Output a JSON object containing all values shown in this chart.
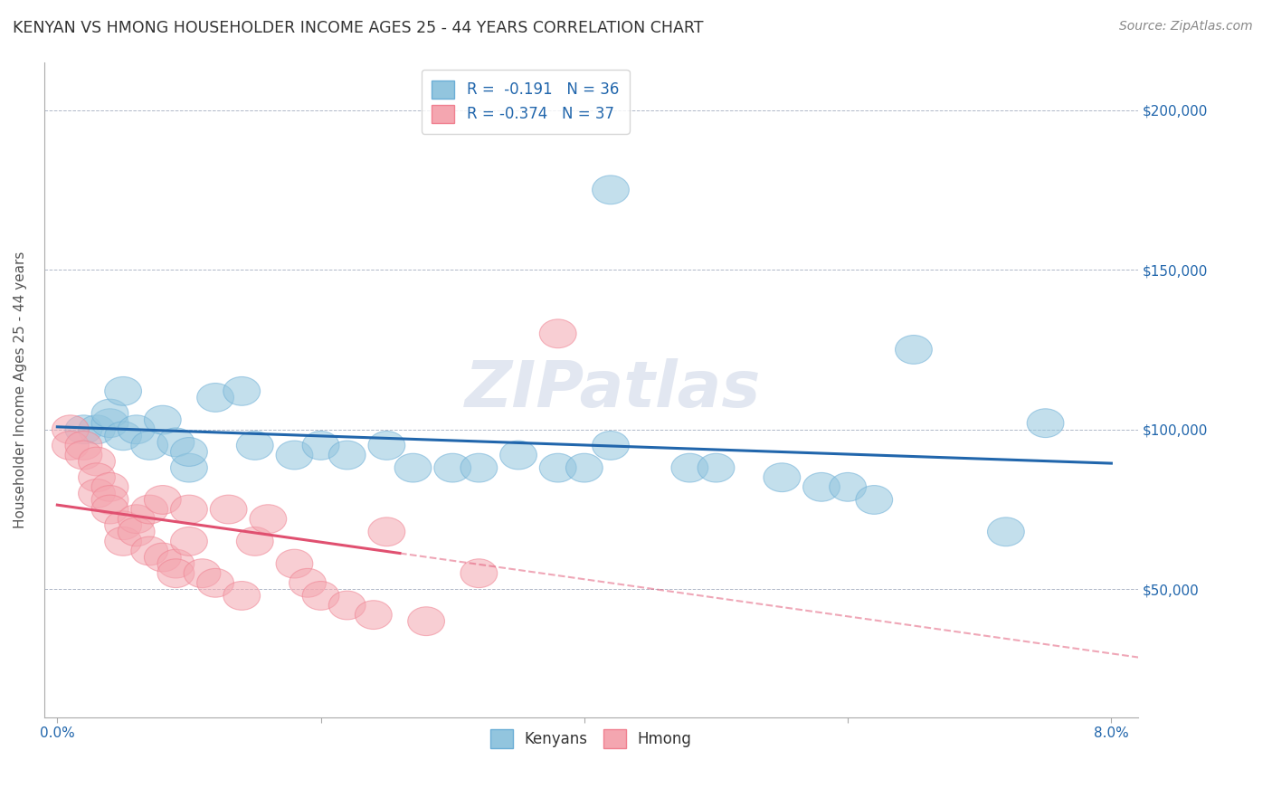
{
  "title": "KENYAN VS HMONG HOUSEHOLDER INCOME AGES 25 - 44 YEARS CORRELATION CHART",
  "source": "Source: ZipAtlas.com",
  "ylabel": "Householder Income Ages 25 - 44 years",
  "xmin": 0.0,
  "xmax": 0.08,
  "ymin": 10000,
  "ymax": 215000,
  "yticks": [
    50000,
    100000,
    150000,
    200000
  ],
  "ytick_labels": [
    "$50,000",
    "$100,000",
    "$150,000",
    "$200,000"
  ],
  "xticks": [
    0.0,
    0.02,
    0.04,
    0.06,
    0.08
  ],
  "xtick_labels": [
    "0.0%",
    "",
    "",
    "",
    "8.0%"
  ],
  "kenyan_color": "#92c5de",
  "hmong_color": "#f4a6b0",
  "kenyan_edge_color": "#6baed6",
  "hmong_edge_color": "#f08090",
  "kenyan_line_color": "#2166ac",
  "hmong_line_color": "#e05070",
  "kenyan_R": -0.191,
  "kenyan_N": 36,
  "hmong_R": -0.374,
  "hmong_N": 37,
  "kenyan_x": [
    0.002,
    0.003,
    0.004,
    0.004,
    0.005,
    0.005,
    0.006,
    0.007,
    0.008,
    0.009,
    0.01,
    0.01,
    0.012,
    0.014,
    0.015,
    0.018,
    0.02,
    0.022,
    0.025,
    0.027,
    0.03,
    0.032,
    0.035,
    0.038,
    0.04,
    0.042,
    0.042,
    0.048,
    0.05,
    0.055,
    0.058,
    0.06,
    0.062,
    0.065,
    0.072,
    0.075
  ],
  "kenyan_y": [
    100000,
    100000,
    102000,
    105000,
    98000,
    112000,
    100000,
    95000,
    103000,
    96000,
    88000,
    93000,
    110000,
    112000,
    95000,
    92000,
    95000,
    92000,
    95000,
    88000,
    88000,
    88000,
    92000,
    88000,
    88000,
    175000,
    95000,
    88000,
    88000,
    85000,
    82000,
    82000,
    78000,
    125000,
    68000,
    102000
  ],
  "hmong_x": [
    0.001,
    0.001,
    0.002,
    0.002,
    0.003,
    0.003,
    0.003,
    0.004,
    0.004,
    0.004,
    0.005,
    0.005,
    0.006,
    0.006,
    0.007,
    0.007,
    0.008,
    0.008,
    0.009,
    0.009,
    0.01,
    0.01,
    0.011,
    0.012,
    0.013,
    0.014,
    0.015,
    0.016,
    0.018,
    0.019,
    0.02,
    0.022,
    0.024,
    0.025,
    0.028,
    0.032,
    0.038
  ],
  "hmong_y": [
    100000,
    95000,
    95000,
    92000,
    90000,
    85000,
    80000,
    82000,
    78000,
    75000,
    70000,
    65000,
    72000,
    68000,
    75000,
    62000,
    78000,
    60000,
    58000,
    55000,
    75000,
    65000,
    55000,
    52000,
    75000,
    48000,
    65000,
    72000,
    58000,
    52000,
    48000,
    45000,
    42000,
    68000,
    40000,
    55000,
    130000
  ],
  "watermark": "ZIPatlas",
  "watermark_color": "#d0d8e8"
}
